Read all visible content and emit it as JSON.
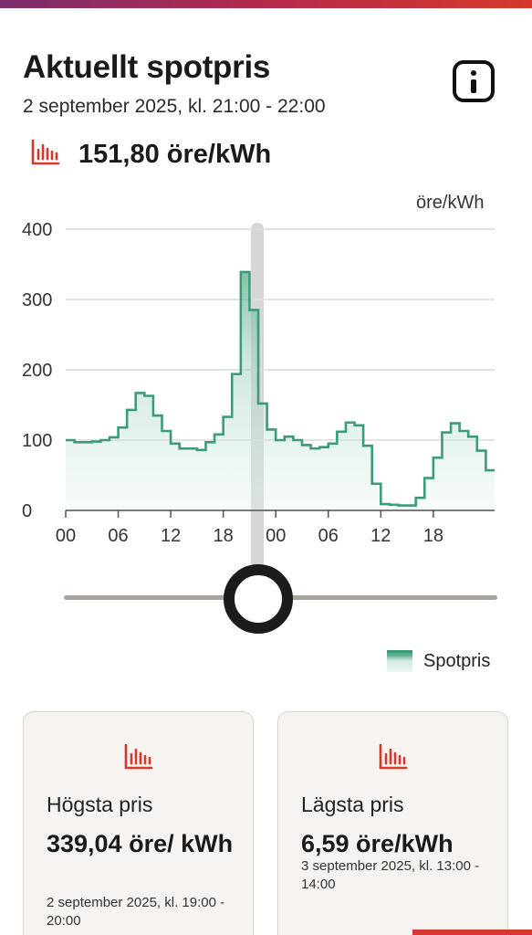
{
  "header": {
    "title": "Aktuellt spotpris",
    "subtitle": "2 september 2025, kl. 21:00 - 22:00",
    "info_icon": "info-icon"
  },
  "current_price": {
    "icon": "bar-chart-icon",
    "value": "151,80 öre/kWh"
  },
  "colors": {
    "accent_red": "#d6382b",
    "series_green": "#3c9b78"
  },
  "chart_data": {
    "type": "area",
    "ylabel": "öre/kWh",
    "ylim": [
      0,
      400
    ],
    "y_ticks": [
      "0",
      "100",
      "200",
      "300",
      "400"
    ],
    "x_ticks": [
      "00",
      "06",
      "12",
      "18",
      "00",
      "06",
      "12",
      "18"
    ],
    "series": [
      {
        "name": "Spotpris",
        "step": true,
        "values": [
          100,
          97,
          97,
          98,
          100,
          104,
          118,
          143,
          167,
          163,
          135,
          113,
          95,
          88,
          88,
          86,
          97,
          108,
          133,
          194,
          339,
          285,
          152,
          115,
          100,
          105,
          100,
          93,
          88,
          90,
          95,
          112,
          125,
          121,
          92,
          38,
          9,
          8,
          7,
          7,
          18,
          46,
          75,
          111,
          124,
          113,
          105,
          85,
          57
        ]
      }
    ],
    "selected_hour_label": "21:00 - 22:00",
    "selected_value": 151.8,
    "grid": true
  },
  "slider": {
    "position_fraction": 0.45
  },
  "legend": {
    "label": "Spotpris"
  },
  "cards": {
    "highest": {
      "icon": "bar-chart-icon",
      "title": "Högsta pris",
      "value": "339,04 öre/ kWh",
      "date": "2 september 2025, kl. 19:00 - 20:00"
    },
    "lowest": {
      "icon": "bar-chart-icon",
      "title": "Lägsta pris",
      "value": "6,59 öre/kWh",
      "date": "3 september 2025, kl. 13:00 - 14:00"
    }
  }
}
